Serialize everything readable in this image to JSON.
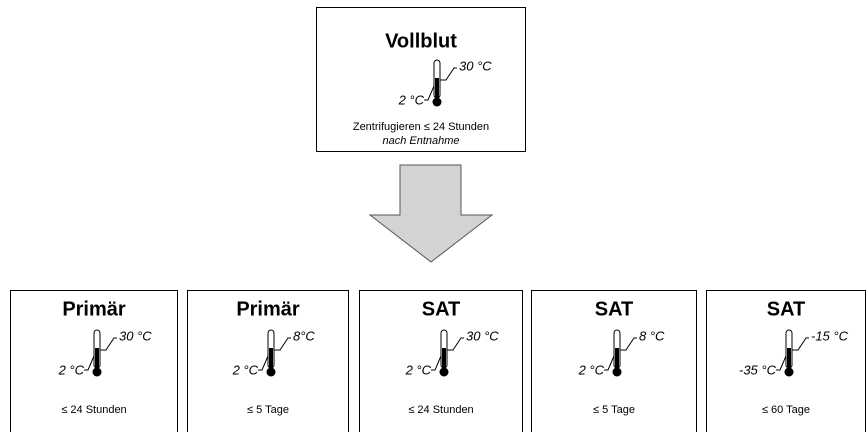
{
  "top": {
    "title": "Vollblut",
    "high": "30 °C",
    "low": "2 °C",
    "note_line1": "Zentrifugieren ≤ 24 Stunden",
    "note_line2": "nach Entnahme"
  },
  "boxes": [
    {
      "title": "Primär",
      "high": "30 °C",
      "low": "2 °C",
      "duration": "≤ 24 Stunden"
    },
    {
      "title": "Primär",
      "high": "8°C",
      "low": "2 °C",
      "duration": "≤ 5 Tage"
    },
    {
      "title": "SAT",
      "high": "30 °C",
      "low": "2 °C",
      "duration": "≤ 24 Stunden"
    },
    {
      "title": "SAT",
      "high": "8 °C",
      "low": "2 °C",
      "duration": "≤ 5 Tage"
    },
    {
      "title": "SAT",
      "high": "-15 °C",
      "low": "-35 °C",
      "duration": "≤ 60 Tage"
    }
  ]
}
